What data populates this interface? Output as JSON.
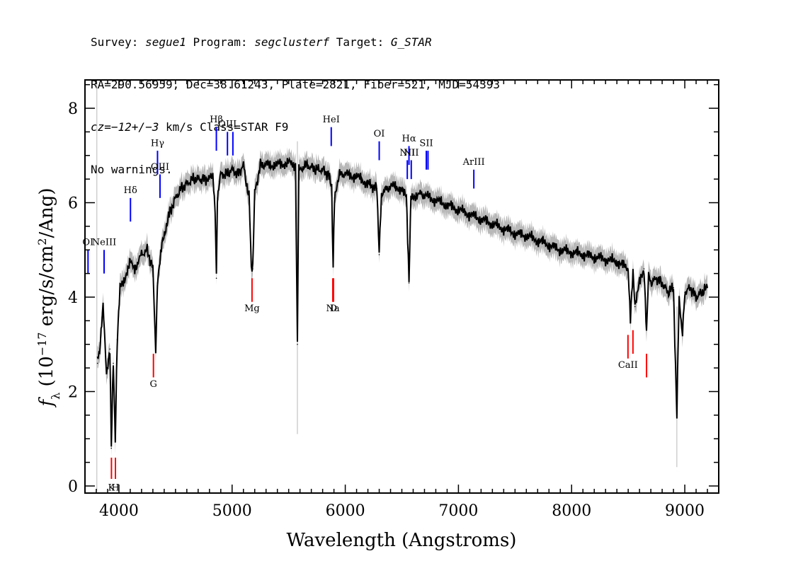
{
  "header": {
    "survey_label": "Survey: ",
    "survey_value": "segue1",
    "program_label": " Program: ",
    "program_value": "segclusterf",
    "target_label": " Target: ",
    "target_value": "G_STAR",
    "line2": "RA=290.56959, Dec=38.61243, Plate=2821, Fiber=521, MJD=54393",
    "cz_label": "cz",
    "cz_value": "=−12+/−3",
    "cz_rest": " km/s Class=STAR F9",
    "line4": "No warnings."
  },
  "chart_data": {
    "type": "line",
    "xlabel": "Wavelength (Angstroms)",
    "ylabel": "f_λ (10^-17 erg/s/cm^2/Ang)",
    "xlim": [
      3700,
      9300
    ],
    "ylim": [
      -0.15,
      8.6
    ],
    "x_ticks": [
      4000,
      5000,
      6000,
      7000,
      8000,
      9000
    ],
    "y_ticks": [
      0,
      2,
      4,
      6,
      8
    ],
    "series": [
      {
        "color": "#000000",
        "x": [
          3810,
          3830,
          3860,
          3890,
          3920,
          3933,
          3950,
          3968,
          3985,
          4010,
          4050,
          4101,
          4140,
          4200,
          4250,
          4300,
          4325,
          4340,
          4380,
          4420,
          4450,
          4500,
          4550,
          4600,
          4650,
          4700,
          4750,
          4800,
          4830,
          4850,
          4861,
          4870,
          4900,
          4950,
          5000,
          5050,
          5100,
          5150,
          5170,
          5183,
          5200,
          5250,
          5300,
          5400,
          5500,
          5560,
          5577,
          5590,
          5650,
          5700,
          5750,
          5800,
          5850,
          5880,
          5893,
          5905,
          5950,
          6000,
          6100,
          6200,
          6280,
          6300,
          6320,
          6400,
          6500,
          6540,
          6563,
          6580,
          6650,
          6700,
          6800,
          6900,
          7000,
          7100,
          7200,
          7300,
          7400,
          7500,
          7600,
          7700,
          7800,
          7900,
          8000,
          8100,
          8200,
          8300,
          8400,
          8500,
          8520,
          8542,
          8560,
          8600,
          8640,
          8662,
          8680,
          8700,
          8750,
          8800,
          8850,
          8900,
          8930,
          8950,
          8980,
          9000,
          9050,
          9100,
          9150,
          9200
        ],
        "y": [
          2.6,
          2.9,
          3.8,
          2.4,
          2.9,
          0.8,
          2.6,
          1.0,
          3.1,
          4.2,
          4.3,
          4.8,
          4.6,
          4.9,
          5.0,
          4.6,
          2.9,
          4.3,
          5.2,
          5.5,
          5.8,
          6.1,
          6.3,
          6.4,
          6.5,
          6.5,
          6.5,
          6.5,
          6.6,
          5.8,
          4.4,
          6.1,
          6.6,
          6.6,
          6.7,
          6.6,
          6.8,
          6.1,
          4.7,
          4.6,
          6.2,
          6.8,
          6.8,
          6.8,
          6.85,
          6.8,
          3.0,
          6.7,
          6.8,
          6.75,
          6.7,
          6.7,
          6.6,
          6.3,
          4.7,
          6.1,
          6.6,
          6.6,
          6.55,
          6.4,
          6.3,
          4.9,
          6.2,
          6.35,
          6.3,
          6.1,
          4.3,
          6.1,
          6.2,
          6.15,
          6.05,
          5.95,
          5.85,
          5.75,
          5.65,
          5.55,
          5.45,
          5.35,
          5.3,
          5.2,
          5.1,
          5.0,
          4.95,
          4.9,
          4.85,
          4.8,
          4.75,
          4.6,
          3.5,
          4.5,
          3.8,
          4.4,
          4.6,
          3.3,
          4.5,
          4.3,
          4.4,
          4.3,
          4.1,
          4.2,
          1.5,
          4.0,
          3.2,
          4.1,
          4.2,
          4.0,
          4.1,
          4.2
        ]
      }
    ],
    "lines": [
      {
        "label": "OI",
        "wave": 3727,
        "color": "#0000ff",
        "y0": 4.5,
        "y1": 5.0,
        "label_y": 5.1
      },
      {
        "label": "NeIII",
        "wave": 3869,
        "color": "#0000ff",
        "y0": 4.5,
        "y1": 5.0,
        "label_y": 5.1
      },
      {
        "label": "Hδ",
        "wave": 4102,
        "color": "#0000ff",
        "y0": 5.6,
        "y1": 6.1,
        "label_y": 6.2
      },
      {
        "label": "Hγ",
        "wave": 4341,
        "color": "#0000ff",
        "y0": 6.6,
        "y1": 7.1,
        "label_y": 7.2
      },
      {
        "label": "OIII",
        "wave": 4363,
        "color": "#0000ff",
        "y0": 6.1,
        "y1": 6.6,
        "label_y": 6.7
      },
      {
        "label": "Hβ",
        "wave": 4861,
        "color": "#0000ff",
        "y0": 7.1,
        "y1": 7.6,
        "label_y": 7.7
      },
      {
        "label": "OIII",
        "wave": 4959,
        "color": "#0000ff",
        "y0": 7.0,
        "y1": 7.5,
        "label_y": 7.6
      },
      {
        "label": "",
        "wave": 5007,
        "color": "#0000ff",
        "y0": 7.0,
        "y1": 7.5,
        "label_y": 7.6
      },
      {
        "label": "HeI",
        "wave": 5876,
        "color": "#0000ff",
        "y0": 7.2,
        "y1": 7.6,
        "label_y": 7.7
      },
      {
        "label": "OI",
        "wave": 6300,
        "color": "#0000ff",
        "y0": 6.9,
        "y1": 7.3,
        "label_y": 7.4
      },
      {
        "label": "NII",
        "wave": 6548,
        "color": "#0000ff",
        "y0": 6.5,
        "y1": 6.9,
        "label_y": 7.0
      },
      {
        "label": "Hα",
        "wave": 6563,
        "color": "#0000ff",
        "y0": 6.8,
        "y1": 7.2,
        "label_y": 7.3
      },
      {
        "label": "NII",
        "wave": 6583,
        "color": "#0000ff",
        "y0": 6.5,
        "y1": 6.9,
        "label_y": 7.0
      },
      {
        "label": "SII",
        "wave": 6716,
        "color": "#0000ff",
        "y0": 6.7,
        "y1": 7.1,
        "label_y": 7.2
      },
      {
        "label": "",
        "wave": 6731,
        "color": "#0000ff",
        "y0": 6.7,
        "y1": 7.1,
        "label_y": 7.2
      },
      {
        "label": "ArIII",
        "wave": 7136,
        "color": "#0000ff",
        "y0": 6.3,
        "y1": 6.7,
        "label_y": 6.8
      },
      {
        "label": "K",
        "wave": 3934,
        "color": "#ff0000",
        "y0": 0.15,
        "y1": 0.6,
        "label_y": -0.1
      },
      {
        "label": "H",
        "wave": 3969,
        "color": "#ff0000",
        "y0": 0.15,
        "y1": 0.6,
        "label_y": -0.1
      },
      {
        "label": "G",
        "wave": 4305,
        "color": "#ff0000",
        "y0": 2.3,
        "y1": 2.8,
        "label_y": 2.1
      },
      {
        "label": "Mg",
        "wave": 5176,
        "color": "#ff0000",
        "y0": 3.9,
        "y1": 4.4,
        "label_y": 3.7
      },
      {
        "label": "Na",
        "wave": 5890,
        "color": "#ff0000",
        "y0": 3.9,
        "y1": 4.4,
        "label_y": 3.7
      },
      {
        "label": "D",
        "wave": 5896,
        "color": "#ff0000",
        "y0": 3.9,
        "y1": 4.4,
        "label_y": 3.7
      },
      {
        "label": "CaII",
        "wave": 8498,
        "color": "#ff0000",
        "y0": 2.7,
        "y1": 3.2,
        "label_y": 2.5
      },
      {
        "label": "",
        "wave": 8542,
        "color": "#ff0000",
        "y0": 2.8,
        "y1": 3.3,
        "label_y": 2.5
      },
      {
        "label": "",
        "wave": 8662,
        "color": "#ff0000",
        "y0": 2.3,
        "y1": 2.8,
        "label_y": 2.5
      }
    ],
    "noise_color": "#b8b8b8",
    "grid": false
  }
}
